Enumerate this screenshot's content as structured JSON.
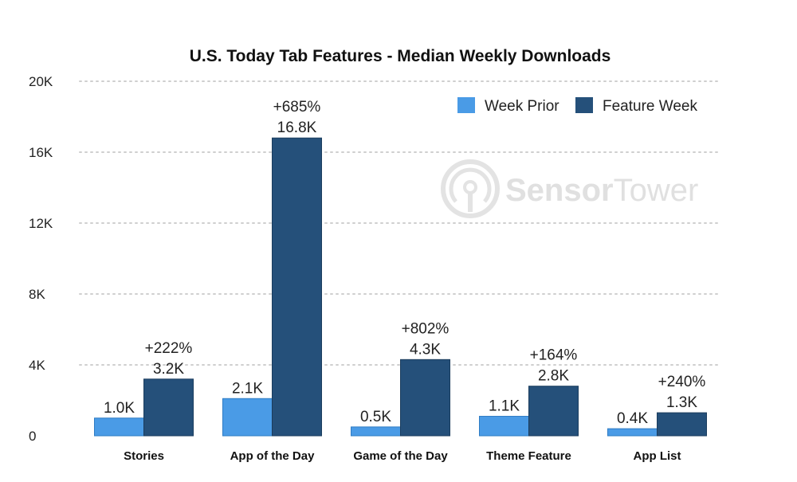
{
  "chart_data": {
    "type": "bar",
    "title": "U.S. Today Tab Features - Median Weekly Downloads",
    "categories": [
      "Stories",
      "App of the Day",
      "Game of the Day",
      "Theme Feature",
      "App List"
    ],
    "series": [
      {
        "name": "Week Prior",
        "color": "#4a9be6",
        "values": [
          1.0,
          2.1,
          0.5,
          1.1,
          0.4
        ],
        "labels": [
          "1.0K",
          "2.1K",
          "0.5K",
          "1.1K",
          "0.4K"
        ]
      },
      {
        "name": "Feature Week",
        "color": "#25507a",
        "values": [
          3.2,
          16.8,
          4.3,
          2.8,
          1.3
        ],
        "labels": [
          "3.2K",
          "16.8K",
          "4.3K",
          "2.8K",
          "1.3K"
        ],
        "pct_labels": [
          "+222%",
          "+685%",
          "+802%",
          "+164%",
          "+240%"
        ]
      }
    ],
    "ylim": [
      0,
      20
    ],
    "yticks": [
      0,
      4,
      8,
      12,
      16,
      20
    ],
    "ytick_labels": [
      "0",
      "4K",
      "8K",
      "12K",
      "16K",
      "20K"
    ],
    "grid": true,
    "legend_position": "top-right"
  },
  "watermark": {
    "text_a": "Sensor",
    "text_b": "Tower"
  }
}
